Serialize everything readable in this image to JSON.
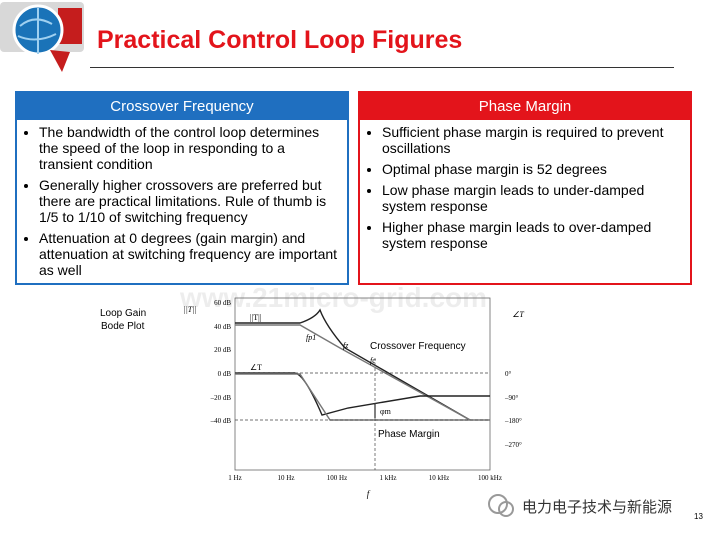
{
  "header": {
    "title": "Practical Control Loop Figures"
  },
  "left_box": {
    "title": "Crossover Frequency",
    "bullets": [
      "The bandwidth of the control loop determines the speed of the loop in responding to a transient condition",
      "Generally higher crossovers are preferred but there are practical limitations. Rule of thumb is 1/5 to 1/10 of switching frequency",
      "Attenuation at 0 degrees (gain margin) and attenuation at switching frequency are important as well"
    ]
  },
  "right_box": {
    "title": "Phase Margin",
    "bullets": [
      "Sufficient phase margin is required to prevent oscillations",
      "Optimal phase margin is 52 degrees",
      "Low phase margin leads to under-damped system response",
      "Higher phase margin leads to over-damped system response"
    ]
  },
  "figure": {
    "caption": "Loop Gain Bode Plot",
    "left_axis_label": "||T||",
    "right_axis_label": "∠T",
    "x_axis_label": "f",
    "left_ticks": [
      "60 dB",
      "40 dB",
      "20 dB",
      "0 dB",
      "–20 dB",
      "–40 dB"
    ],
    "right_ticks": [
      "0°",
      "–90°",
      "–180°",
      "–270°"
    ],
    "x_ticks": [
      "1 Hz",
      "10 Hz",
      "100 Hz",
      "1 kHz",
      "10 kHz",
      "100 kHz"
    ],
    "annotations": [
      "Crossover Frequency",
      "Phase Margin",
      "||T||",
      "∠T",
      "fp1",
      "fz",
      "fc",
      "φm"
    ]
  },
  "watermark": "www.21micro-grid.com",
  "footer": {
    "source": "电力电子技术与新能源",
    "page": "13"
  }
}
